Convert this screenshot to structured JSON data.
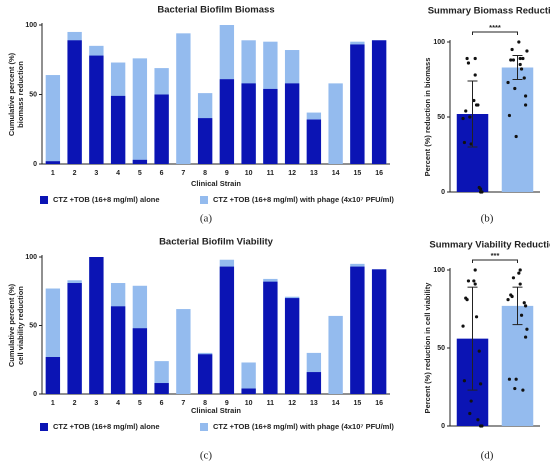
{
  "chart_data": [
    {
      "type": "bar",
      "title": "Bacterial Biofilm Biomass",
      "ylabel": [
        "Cumulative percent (%)",
        "biomass reduction"
      ],
      "xlabel": "Clinical Strain",
      "panel_label": "(a)",
      "categories": [
        "1",
        "2",
        "3",
        "4",
        "5",
        "6",
        "7",
        "8",
        "9",
        "10",
        "11",
        "12",
        "13",
        "14",
        "15",
        "16"
      ],
      "series": [
        {
          "name": "CTZ +TOB (16+8 mg/ml) alone",
          "color": "#0b14b4",
          "values": [
            2,
            89,
            78,
            49,
            3,
            50,
            0,
            33,
            61,
            58,
            54,
            58,
            32,
            0,
            86,
            89
          ]
        },
        {
          "name": "CTZ +TOB (16+8 mg/ml) with phage (4x10⁷ PFU/ml)",
          "color": "#94bbee",
          "values": [
            64,
            95,
            85,
            73,
            76,
            69,
            94,
            51,
            100,
            89,
            88,
            82,
            37,
            58,
            88,
            89
          ]
        }
      ],
      "ylim": [
        0,
        100
      ],
      "yticks": [
        0,
        50,
        100
      ]
    },
    {
      "type": "summary",
      "title": "Summary Biomass Reduction",
      "ylabel": "Percent (%) reduction in biomass",
      "panel_label": "(b)",
      "annotation": "****",
      "values": [
        52,
        83
      ],
      "errors": [
        22,
        8
      ],
      "colors": [
        "#0b14b4",
        "#94bbee"
      ],
      "ylim": [
        0,
        100
      ],
      "yticks": [
        0,
        50,
        100
      ]
    },
    {
      "type": "bar",
      "title": "Bacterial Biofilm Viability",
      "ylabel": [
        "Cumulative percent (%)",
        "cell viability reduction"
      ],
      "xlabel": "Clinical Strain",
      "panel_label": "(c)",
      "categories": [
        "1",
        "2",
        "3",
        "4",
        "5",
        "6",
        "7",
        "8",
        "9",
        "10",
        "11",
        "12",
        "13",
        "14",
        "15",
        "16"
      ],
      "series": [
        {
          "name": "CTZ +TOB (16+8 mg/ml) alone",
          "color": "#0b14b4",
          "values": [
            27,
            81,
            100,
            64,
            48,
            8,
            0,
            29,
            93,
            4,
            82,
            70,
            16,
            0,
            93,
            91
          ]
        },
        {
          "name": "CTZ +TOB (16+8 mg/ml) with phage (4x10⁷ PFU/ml)",
          "color": "#94bbee",
          "values": [
            77,
            83,
            100,
            81,
            79,
            24,
            62,
            30,
            98,
            23,
            84,
            71,
            30,
            57,
            95,
            91
          ]
        }
      ],
      "ylim": [
        0,
        100
      ],
      "yticks": [
        0,
        50,
        100
      ]
    },
    {
      "type": "summary",
      "title": "Summary Viability Reduction",
      "ylabel": "Percent (%) reduction in cell viability",
      "panel_label": "(d)",
      "annotation": "***",
      "values": [
        56,
        77
      ],
      "errors": [
        33,
        12
      ],
      "colors": [
        "#0b14b4",
        "#94bbee"
      ],
      "ylim": [
        0,
        100
      ],
      "yticks": [
        0,
        50,
        100
      ]
    }
  ]
}
